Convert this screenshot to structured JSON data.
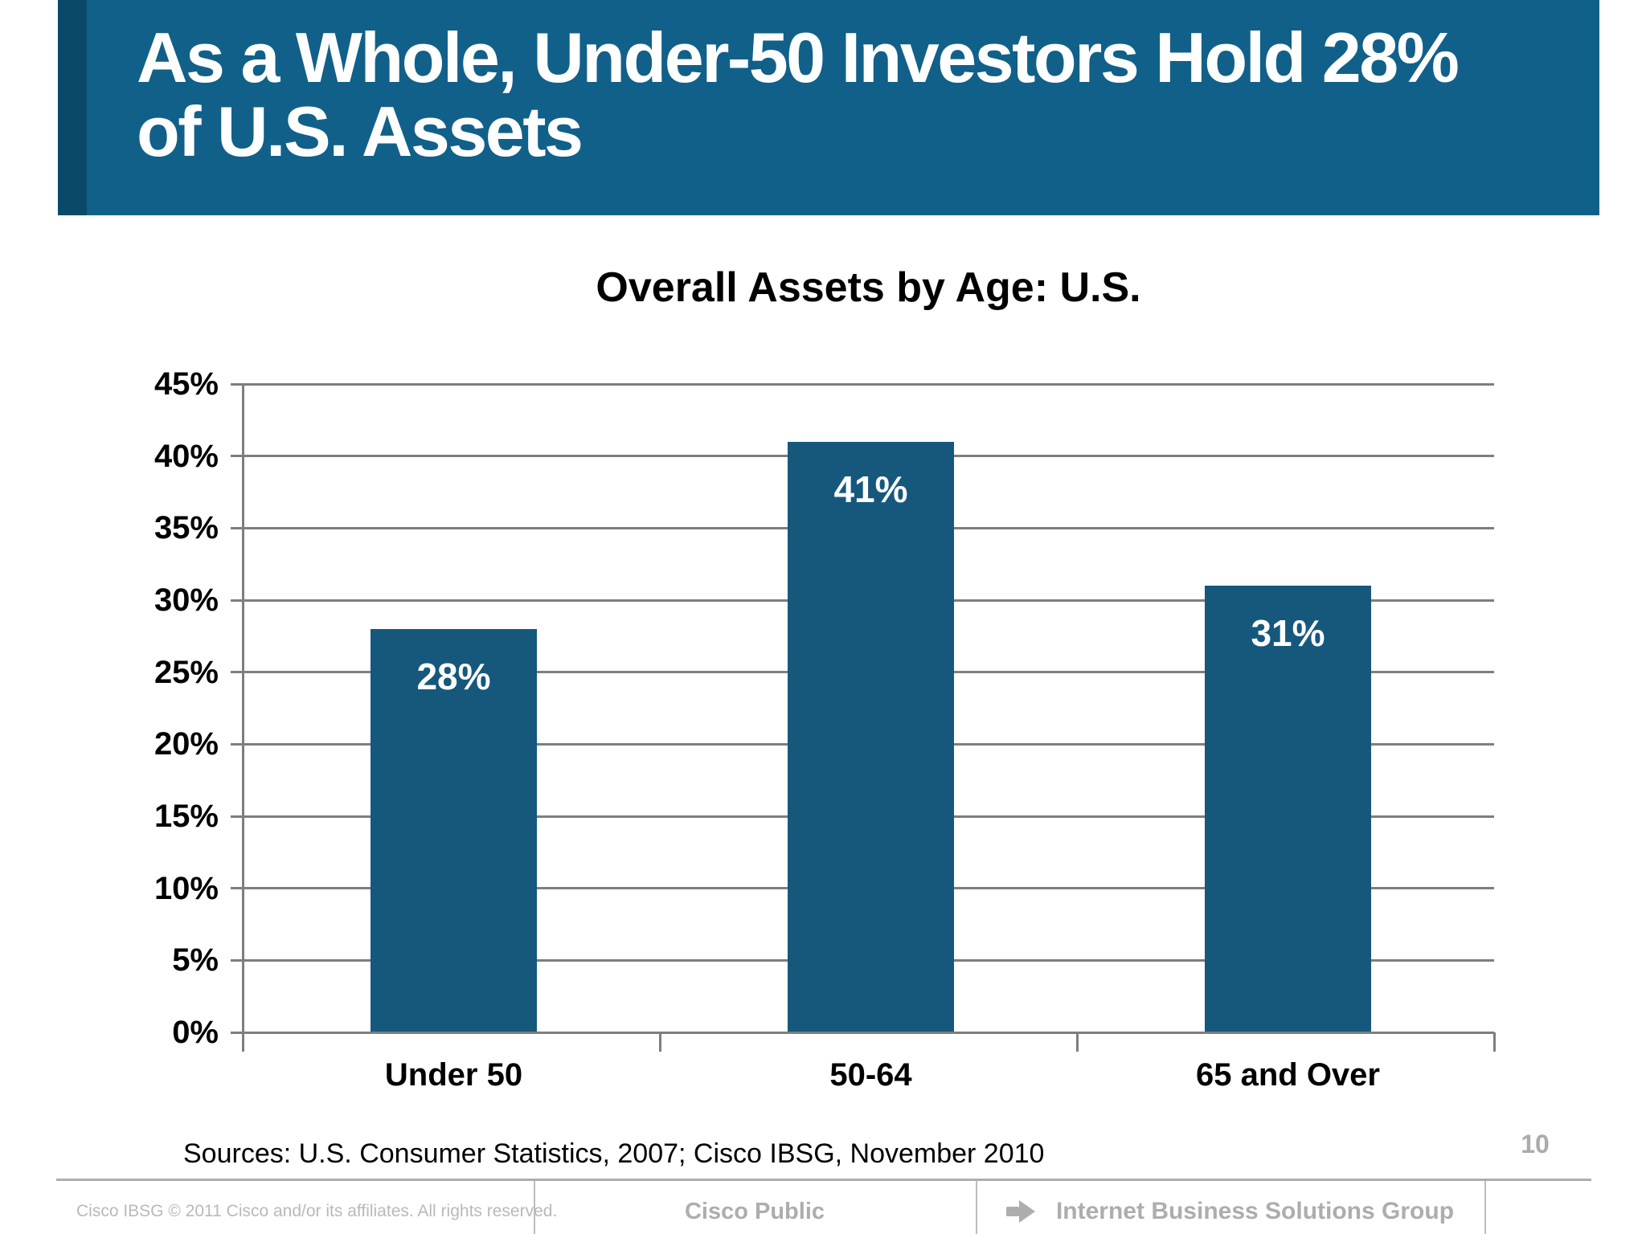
{
  "header": {
    "title_line1": "As a Whole, Under-50 Investors Hold 28%",
    "title_line2": "of U.S. Assets"
  },
  "chart_data": {
    "type": "bar",
    "title": "Overall Assets by Age: U.S.",
    "categories": [
      "Under 50",
      "50-64",
      "65 and Over"
    ],
    "values": [
      28,
      41,
      31
    ],
    "bar_labels": [
      "28%",
      "41%",
      "31%"
    ],
    "ylim": [
      0,
      45
    ],
    "ytick_step": 5,
    "ytick_labels": [
      "0%",
      "5%",
      "10%",
      "15%",
      "20%",
      "25%",
      "30%",
      "35%",
      "40%",
      "45%"
    ],
    "grid": true,
    "legend": "none",
    "bar_color": "#15587C",
    "bar_label_color": "#FFFFFF",
    "gridline_color": "#7E7E7E"
  },
  "sources": "Sources: U.S. Consumer Statistics, 2007; Cisco IBSG, November 2010",
  "page_number": "10",
  "footer": {
    "copyright": "Cisco IBSG © 2011 Cisco and/or its affiliates. All rights reserved.",
    "classification": "Cisco Public",
    "group": "Internet Business Solutions Group",
    "arrow_icon": "right-arrow"
  },
  "colors": {
    "banner": "#11608A",
    "banner_stripe": "#0A4A68",
    "footer_gray": "#ADADAD"
  }
}
